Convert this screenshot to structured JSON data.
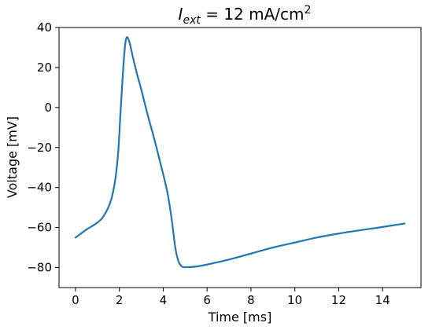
{
  "chart_data": {
    "type": "line",
    "title": {
      "var": "I",
      "sub": "ext",
      "rest": " = 12 mA/cm",
      "sup": "2"
    },
    "xlabel": "Time [ms]",
    "ylabel": "Voltage [mV]",
    "xlim": [
      -0.75,
      15.75
    ],
    "ylim": [
      -90,
      40
    ],
    "xticks": [
      0,
      2,
      4,
      6,
      8,
      10,
      12,
      14
    ],
    "yticks": [
      -80,
      -60,
      -40,
      -20,
      0,
      20,
      40
    ],
    "ytick_labels": [
      "−80",
      "−60",
      "−40",
      "−20",
      "0",
      "20",
      "40"
    ],
    "grid": false,
    "series": [
      {
        "color": "#1f77b4",
        "x": [
          0,
          0.5,
          1.0,
          1.3,
          1.6,
          1.8,
          1.95,
          2.05,
          2.15,
          2.25,
          2.33,
          2.42,
          2.5,
          2.6,
          2.8,
          3.0,
          3.3,
          3.6,
          3.9,
          4.2,
          4.4,
          4.55,
          4.7,
          4.85,
          5.0,
          5.5,
          6.0,
          7.0,
          8.0,
          9.0,
          10.0,
          11.0,
          12.0,
          13.0,
          14.0,
          15.0
        ],
        "y": [
          -65,
          -61,
          -57.5,
          -54,
          -47,
          -37,
          -22,
          -3,
          15,
          30,
          35,
          34,
          31,
          26,
          17,
          9,
          -4,
          -16,
          -29,
          -43,
          -57,
          -70,
          -77,
          -79.5,
          -79.8,
          -79.5,
          -78.5,
          -76,
          -73,
          -70,
          -67.5,
          -65,
          -63,
          -61.3,
          -59.7,
          -58
        ]
      }
    ]
  }
}
